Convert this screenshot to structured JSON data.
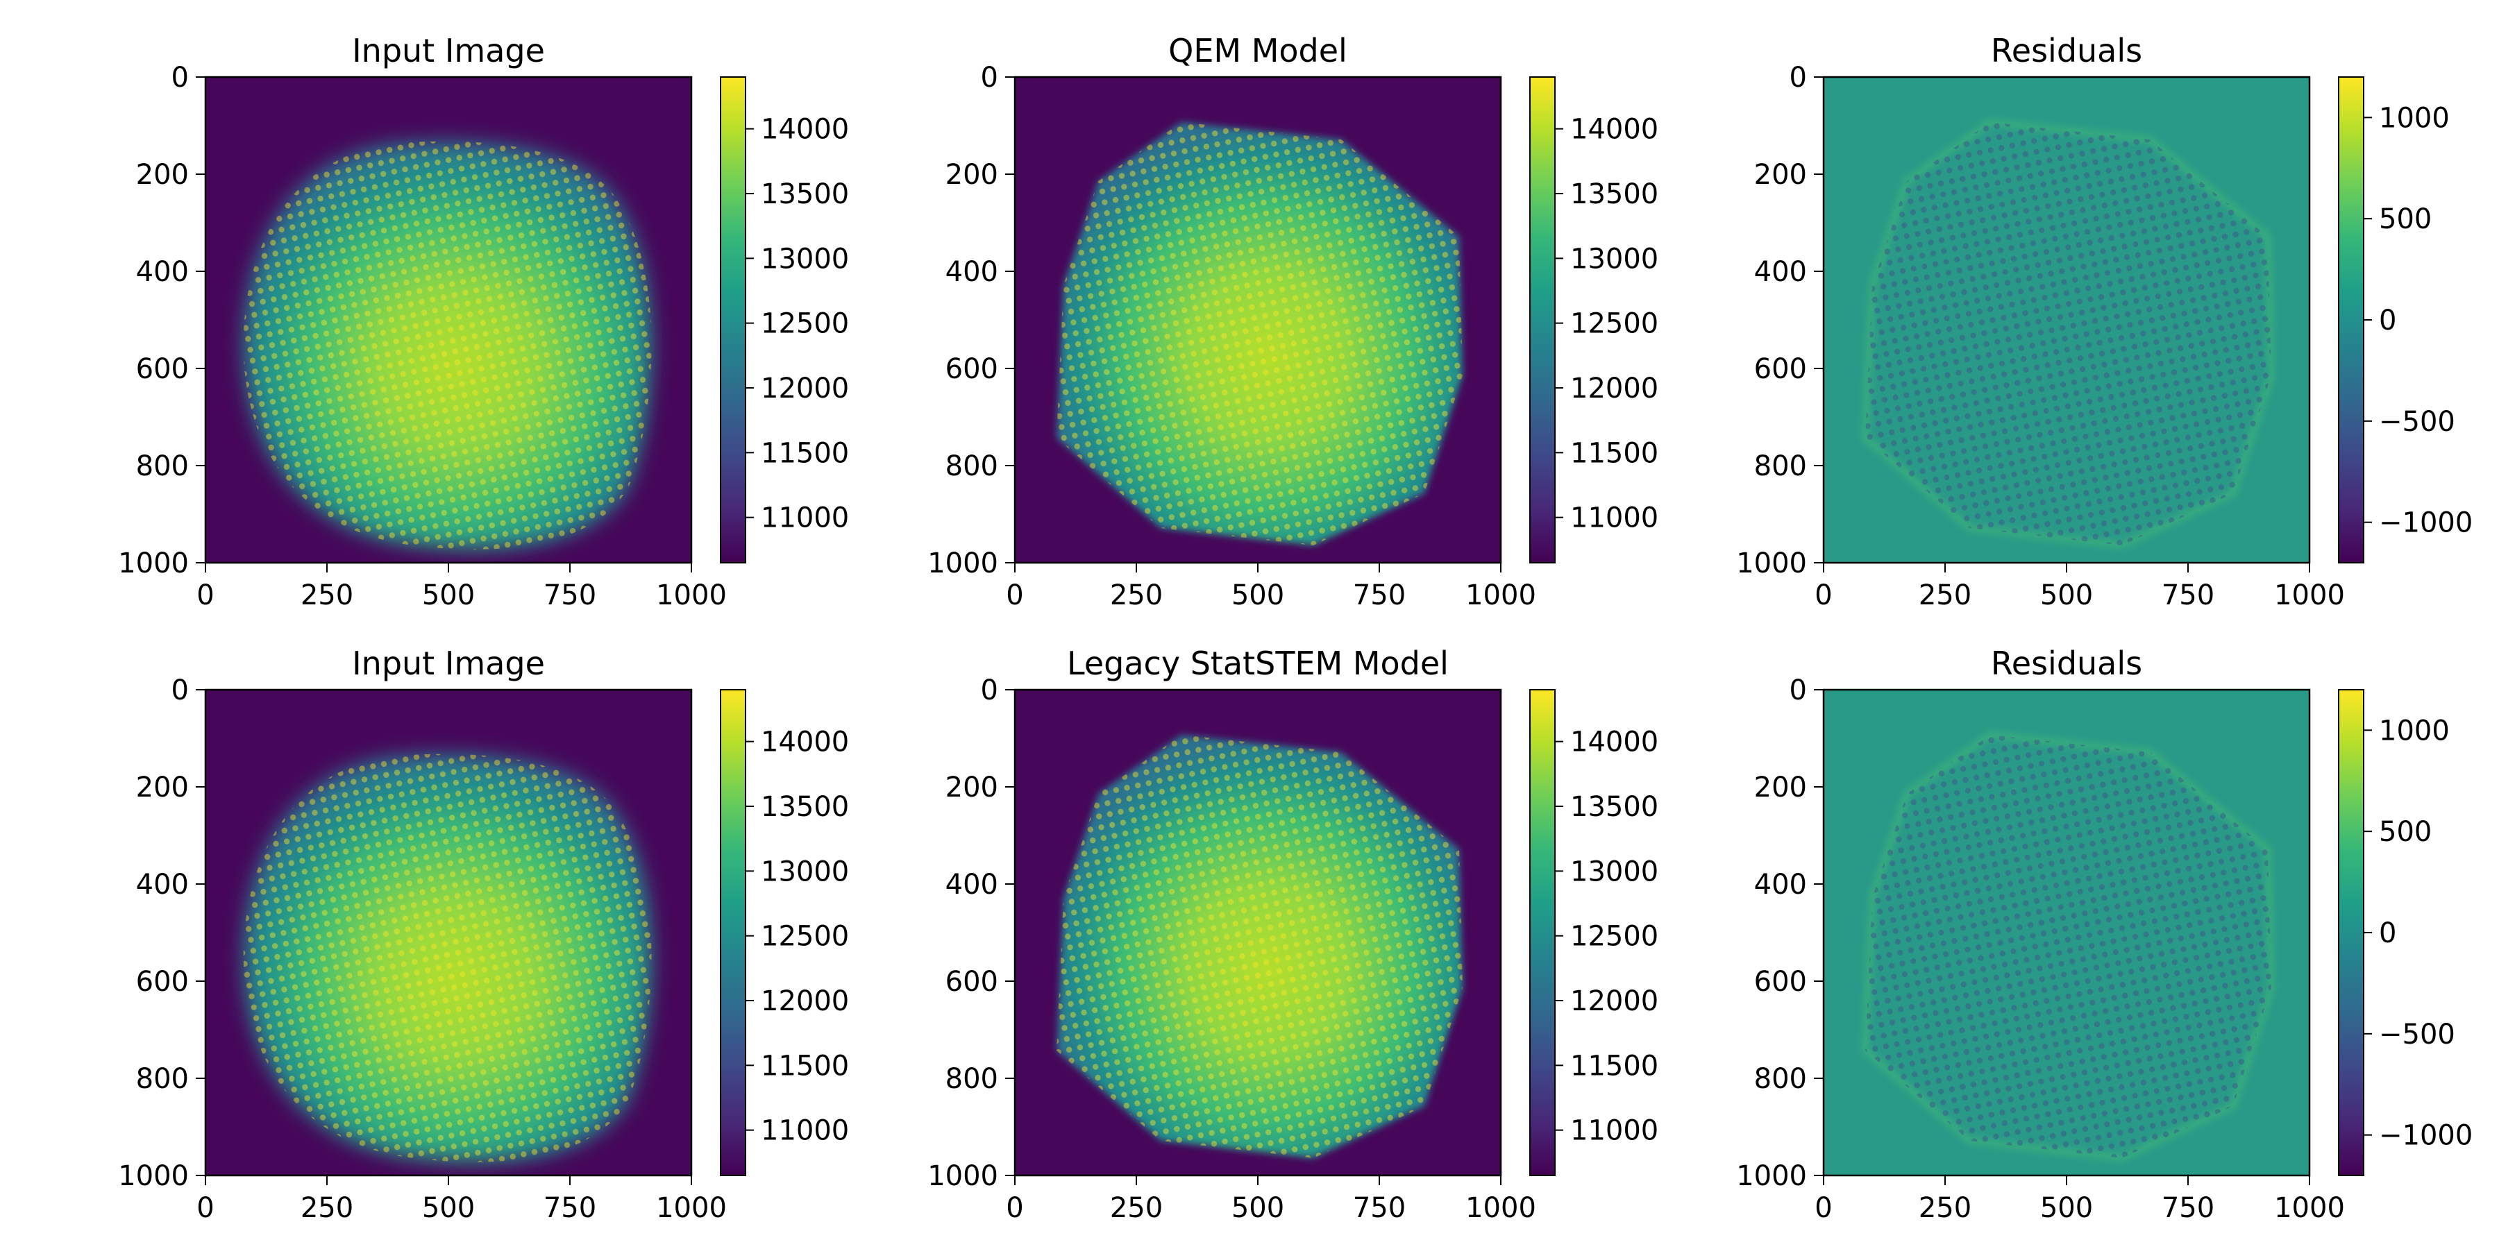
{
  "figure": {
    "background": "#ffffff"
  },
  "colormap": {
    "name": "viridis",
    "stops": [
      "#440154",
      "#482878",
      "#3e4989",
      "#31688e",
      "#26828e",
      "#1f9e89",
      "#35b779",
      "#6ece58",
      "#b5de2b",
      "#fde725"
    ],
    "background_value_color": "#46075a",
    "residual_background_color": "#2a9a88"
  },
  "chart_data": [
    {
      "type": "heatmap",
      "title": "Input Image",
      "image": "measured STEM image: bright rounded particle with lattice of atomic columns",
      "xlim": [
        0,
        1000
      ],
      "ylim": [
        1000,
        0
      ],
      "xticks": [
        "0",
        "250",
        "500",
        "750",
        "1000"
      ],
      "yticks": [
        "0",
        "200",
        "400",
        "600",
        "800",
        "1000"
      ],
      "colorbar": {
        "min": 10650,
        "max": 14400,
        "ticks": [
          "11000",
          "11500",
          "12000",
          "12500",
          "13000",
          "13500",
          "14000"
        ]
      }
    },
    {
      "type": "heatmap",
      "title": "QEM Model",
      "image": "fitted model: octagon-shaped particle with sharp lattice",
      "xlim": [
        0,
        1000
      ],
      "ylim": [
        1000,
        0
      ],
      "xticks": [
        "0",
        "250",
        "500",
        "750",
        "1000"
      ],
      "yticks": [
        "0",
        "200",
        "400",
        "600",
        "800",
        "1000"
      ],
      "colorbar": {
        "min": 10650,
        "max": 14400,
        "ticks": [
          "11000",
          "11500",
          "12000",
          "12500",
          "13000",
          "13500",
          "14000"
        ]
      }
    },
    {
      "type": "heatmap",
      "title": "Residuals",
      "image": "difference image: near-zero field with faint lattice and particle outline",
      "xlim": [
        0,
        1000
      ],
      "ylim": [
        1000,
        0
      ],
      "xticks": [
        "0",
        "250",
        "500",
        "750",
        "1000"
      ],
      "yticks": [
        "0",
        "200",
        "400",
        "600",
        "800",
        "1000"
      ],
      "colorbar": {
        "min": -1200,
        "max": 1200,
        "ticks": [
          "−1000",
          "−500",
          "0",
          "500",
          "1000"
        ]
      }
    },
    {
      "type": "heatmap",
      "title": "Input Image",
      "image": "measured STEM image: bright rounded particle with lattice of atomic columns",
      "xlim": [
        0,
        1000
      ],
      "ylim": [
        1000,
        0
      ],
      "xticks": [
        "0",
        "250",
        "500",
        "750",
        "1000"
      ],
      "yticks": [
        "0",
        "200",
        "400",
        "600",
        "800",
        "1000"
      ],
      "colorbar": {
        "min": 10650,
        "max": 14400,
        "ticks": [
          "11000",
          "11500",
          "12000",
          "12500",
          "13000",
          "13500",
          "14000"
        ]
      }
    },
    {
      "type": "heatmap",
      "title": "Legacy StatSTEM Model",
      "image": "fitted model: octagon-shaped particle with sharp lattice",
      "xlim": [
        0,
        1000
      ],
      "ylim": [
        1000,
        0
      ],
      "xticks": [
        "0",
        "250",
        "500",
        "750",
        "1000"
      ],
      "yticks": [
        "0",
        "200",
        "400",
        "600",
        "800",
        "1000"
      ],
      "colorbar": {
        "min": 10650,
        "max": 14400,
        "ticks": [
          "11000",
          "11500",
          "12000",
          "12500",
          "13000",
          "13500",
          "14000"
        ]
      }
    },
    {
      "type": "heatmap",
      "title": "Residuals",
      "image": "difference image: near-zero field with faint lattice and particle outline",
      "xlim": [
        0,
        1000
      ],
      "ylim": [
        1000,
        0
      ],
      "xticks": [
        "0",
        "250",
        "500",
        "750",
        "1000"
      ],
      "yticks": [
        "0",
        "200",
        "400",
        "600",
        "800",
        "1000"
      ],
      "colorbar": {
        "min": -1200,
        "max": 1200,
        "ticks": [
          "−1000",
          "−500",
          "0",
          "500",
          "1000"
        ]
      }
    }
  ]
}
